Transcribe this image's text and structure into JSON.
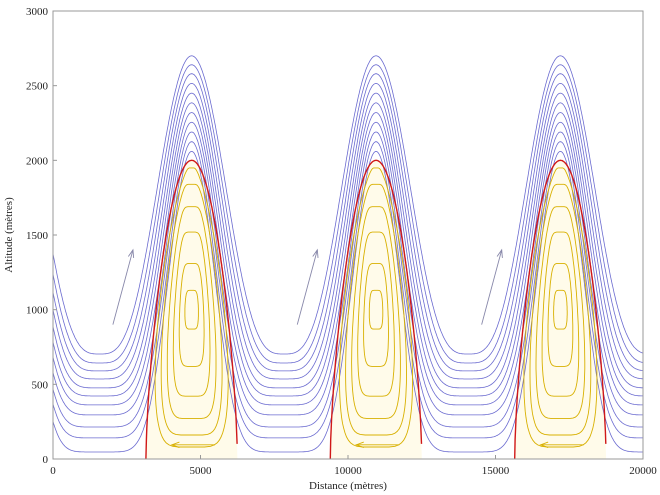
{
  "chart_data": {
    "type": "line",
    "xlabel": "Distance (mètres)",
    "ylabel": "Altitude (mètres)",
    "xlim": [
      0,
      20000
    ],
    "ylim": [
      0,
      3000
    ],
    "xticks": [
      "0",
      "5000",
      "10000",
      "15000",
      "20000"
    ],
    "yticks": [
      "0",
      "500",
      "1000",
      "1500",
      "2000",
      "2500",
      "3000"
    ],
    "grid": false,
    "legend": "none",
    "crest_x": [
      4700,
      10950,
      17200
    ],
    "wavelength": 6250,
    "streamlines": {
      "color": "#6b6bd0",
      "trough_altitudes": [
        47,
        141,
        214,
        295,
        362,
        422,
        476,
        536,
        590,
        643,
        703
      ],
      "crest_altitudes": [
        2060,
        2125,
        2190,
        2255,
        2320,
        2385,
        2450,
        2515,
        2580,
        2640,
        2700
      ]
    },
    "separatrix": {
      "color": "#d01818",
      "crest_altitude": 2000,
      "ground_half_width": 1550
    },
    "rotor_loops": {
      "color": "#d8b000",
      "fill": "#fffbea",
      "top_altitudes": [
        1950,
        1840,
        1690,
        1520,
        1310,
        1130
      ],
      "bottom_altitudes": [
        80,
        160,
        270,
        420,
        620,
        870
      ]
    },
    "flow_arrows": {
      "color": "#8888aa",
      "from": [
        2030,
        900
      ],
      "to": [
        2710,
        1400
      ]
    },
    "rotor_arrows": {
      "from": [
        5490,
        95
      ],
      "to": [
        4030,
        95
      ]
    }
  }
}
